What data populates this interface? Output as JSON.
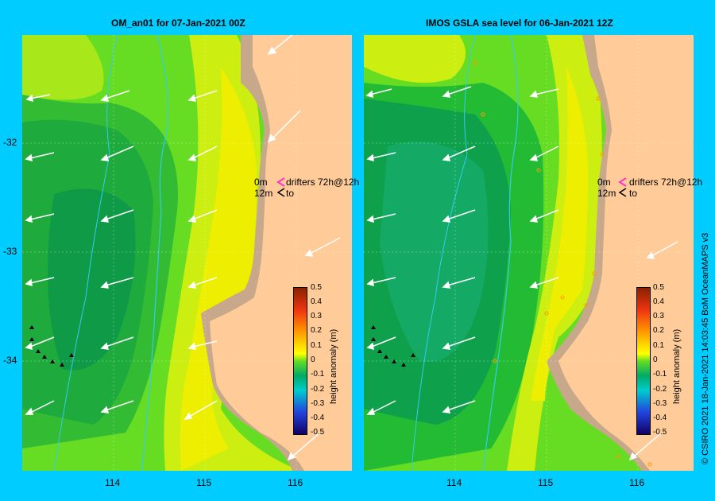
{
  "panels": [
    {
      "title": "OM_an01  for 07-Jan-2021 00Z"
    },
    {
      "title": "IMOS GSLA sea level  for 06-Jan-2021 12Z"
    }
  ],
  "y_ticks": [
    "-32",
    "-33",
    "-34"
  ],
  "x_ticks": [
    "114",
    "115",
    "116"
  ],
  "legend": {
    "row1_depth": "0m",
    "row1_text": "drifters 72h@12h",
    "row2_depth": "12m",
    "row2_text": "to"
  },
  "colorbar": {
    "label": "height anomaly (m)",
    "ticks": [
      "0.5",
      "0.4",
      "0.3",
      "0.2",
      "0.1",
      "0",
      "-0.1",
      "-0.2",
      "-0.3",
      "-0.4",
      "-0.5"
    ]
  },
  "copyright": "© CSIRO 2021  18-Jan-2021 14:03:45 BoM OceanMAPS v3",
  "colors": {
    "background": "#00ccff",
    "land": "#ffcc99",
    "shelf": "#c8a88a",
    "anomaly_low": "#00994d",
    "anomaly_mid": "#66dd22",
    "anomaly_high": "#eeee00",
    "arrow": "#ffffff",
    "isobath": "#33ccee",
    "drifter": "#ff33cc"
  }
}
